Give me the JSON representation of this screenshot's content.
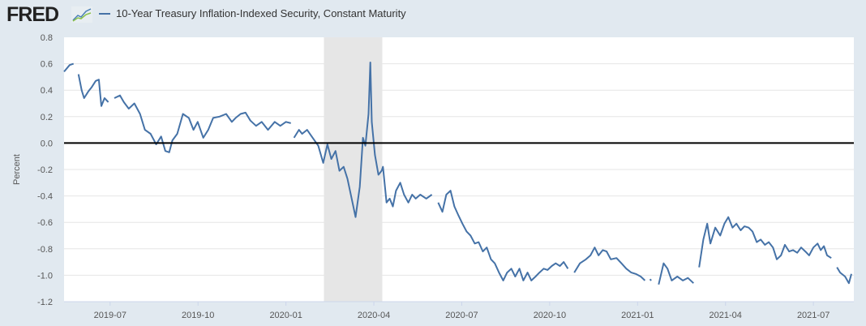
{
  "header": {
    "logo_text": "FRED"
  },
  "chart_data": {
    "type": "line",
    "title": "",
    "legend": [
      "10-Year Treasury Inflation-Indexed Security, Constant Maturity"
    ],
    "legend_placement": "top-left",
    "xlabel": "",
    "ylabel": "Percent",
    "ylim": [
      -1.2,
      0.8
    ],
    "xlim": [
      2019.369,
      2021.615
    ],
    "yticks": [
      "0.8",
      "0.6",
      "0.4",
      "0.2",
      "0.0",
      "-0.2",
      "-0.4",
      "-0.6",
      "-0.8",
      "-1.0",
      "-1.2"
    ],
    "ytick_values": [
      0.8,
      0.6,
      0.4,
      0.2,
      0,
      -0.2,
      -0.4,
      -0.6,
      -0.8,
      -1.0,
      -1.2
    ],
    "xticks": [
      "2019-07",
      "2019-10",
      "2020-01",
      "2020-04",
      "2020-07",
      "2020-10",
      "2021-01",
      "2021-04",
      "2021-07"
    ],
    "xtick_values": [
      2019.5,
      2019.75,
      2020.0,
      2020.25,
      2020.5,
      2020.75,
      2021.0,
      2021.25,
      2021.5
    ],
    "grid": true,
    "recession_shading": [
      2020.108,
      2020.274
    ],
    "line_color": "#4572a7",
    "series": [
      {
        "name": "10-Year Treasury Inflation-Indexed Security, Constant Maturity",
        "segments": [
          [
            [
              2019.369,
              0.54
            ],
            [
              2019.385,
              0.59
            ],
            [
              2019.396,
              0.6
            ]
          ],
          [
            [
              2019.41,
              0.52
            ],
            [
              2019.419,
              0.4
            ],
            [
              2019.426,
              0.34
            ],
            [
              2019.438,
              0.39
            ],
            [
              2019.447,
              0.42
            ],
            [
              2019.459,
              0.47
            ],
            [
              2019.468,
              0.48
            ],
            [
              2019.475,
              0.28
            ],
            [
              2019.484,
              0.34
            ],
            [
              2019.495,
              0.31
            ]
          ],
          [
            [
              2019.512,
              0.34
            ],
            [
              2019.528,
              0.36
            ],
            [
              2019.539,
              0.31
            ],
            [
              2019.553,
              0.26
            ],
            [
              2019.569,
              0.3
            ],
            [
              2019.585,
              0.22
            ],
            [
              2019.599,
              0.1
            ],
            [
              2019.615,
              0.07
            ],
            [
              2019.631,
              -0.01
            ],
            [
              2019.645,
              0.05
            ],
            [
              2019.657,
              -0.06
            ],
            [
              2019.668,
              -0.07
            ],
            [
              2019.677,
              0.02
            ],
            [
              2019.691,
              0.07
            ],
            [
              2019.707,
              0.22
            ],
            [
              2019.724,
              0.19
            ],
            [
              2019.737,
              0.1
            ],
            [
              2019.749,
              0.16
            ],
            [
              2019.765,
              0.04
            ],
            [
              2019.779,
              0.1
            ],
            [
              2019.793,
              0.19
            ],
            [
              2019.811,
              0.2
            ],
            [
              2019.83,
              0.22
            ],
            [
              2019.846,
              0.16
            ],
            [
              2019.857,
              0.19
            ],
            [
              2019.871,
              0.22
            ],
            [
              2019.885,
              0.23
            ],
            [
              2019.899,
              0.17
            ],
            [
              2019.915,
              0.13
            ],
            [
              2019.931,
              0.16
            ],
            [
              2019.949,
              0.1
            ],
            [
              2019.968,
              0.16
            ],
            [
              2019.984,
              0.13
            ],
            [
              2020.0,
              0.16
            ],
            [
              2020.014,
              0.15
            ]
          ],
          [
            [
              2020.023,
              0.04
            ],
            [
              2020.037,
              0.1
            ],
            [
              2020.046,
              0.07
            ],
            [
              2020.06,
              0.1
            ],
            [
              2020.076,
              0.04
            ],
            [
              2020.092,
              -0.02
            ],
            [
              2020.106,
              -0.15
            ],
            [
              2020.118,
              -0.01
            ],
            [
              2020.129,
              -0.12
            ],
            [
              2020.141,
              -0.06
            ],
            [
              2020.152,
              -0.21
            ],
            [
              2020.164,
              -0.18
            ],
            [
              2020.175,
              -0.27
            ],
            [
              2020.187,
              -0.42
            ],
            [
              2020.198,
              -0.56
            ],
            [
              2020.21,
              -0.33
            ],
            [
              2020.219,
              0.04
            ],
            [
              2020.226,
              -0.02
            ],
            [
              2020.235,
              0.22
            ],
            [
              2020.24,
              0.61
            ],
            [
              2020.244,
              0.16
            ],
            [
              2020.253,
              -0.09
            ],
            [
              2020.263,
              -0.24
            ],
            [
              2020.272,
              -0.21
            ],
            [
              2020.276,
              -0.18
            ],
            [
              2020.286,
              -0.45
            ],
            [
              2020.295,
              -0.42
            ],
            [
              2020.304,
              -0.48
            ],
            [
              2020.313,
              -0.36
            ],
            [
              2020.325,
              -0.3
            ],
            [
              2020.336,
              -0.39
            ],
            [
              2020.348,
              -0.45
            ],
            [
              2020.359,
              -0.39
            ],
            [
              2020.369,
              -0.42
            ],
            [
              2020.382,
              -0.39
            ],
            [
              2020.399,
              -0.42
            ],
            [
              2020.415,
              -0.39
            ]
          ],
          [
            [
              2020.433,
              -0.45
            ],
            [
              2020.445,
              -0.52
            ],
            [
              2020.456,
              -0.39
            ],
            [
              2020.468,
              -0.36
            ],
            [
              2020.479,
              -0.48
            ],
            [
              2020.491,
              -0.55
            ],
            [
              2020.502,
              -0.61
            ],
            [
              2020.514,
              -0.67
            ],
            [
              2020.525,
              -0.7
            ],
            [
              2020.537,
              -0.76
            ],
            [
              2020.548,
              -0.75
            ],
            [
              2020.56,
              -0.82
            ],
            [
              2020.571,
              -0.79
            ],
            [
              2020.583,
              -0.88
            ],
            [
              2020.594,
              -0.91
            ],
            [
              2020.606,
              -0.98
            ],
            [
              2020.618,
              -1.04
            ],
            [
              2020.629,
              -0.98
            ],
            [
              2020.641,
              -0.95
            ],
            [
              2020.652,
              -1.01
            ],
            [
              2020.664,
              -0.95
            ],
            [
              2020.675,
              -1.04
            ],
            [
              2020.687,
              -0.98
            ],
            [
              2020.698,
              -1.04
            ],
            [
              2020.71,
              -1.01
            ],
            [
              2020.721,
              -0.98
            ],
            [
              2020.733,
              -0.95
            ],
            [
              2020.744,
              -0.96
            ],
            [
              2020.756,
              -0.93
            ],
            [
              2020.767,
              -0.91
            ],
            [
              2020.779,
              -0.93
            ],
            [
              2020.79,
              -0.9
            ],
            [
              2020.802,
              -0.95
            ]
          ],
          [
            [
              2020.82,
              -0.98
            ],
            [
              2020.836,
              -0.91
            ],
            [
              2020.853,
              -0.88
            ],
            [
              2020.866,
              -0.85
            ],
            [
              2020.878,
              -0.79
            ],
            [
              2020.889,
              -0.85
            ],
            [
              2020.901,
              -0.81
            ],
            [
              2020.912,
              -0.82
            ],
            [
              2020.924,
              -0.88
            ],
            [
              2020.94,
              -0.87
            ],
            [
              2020.954,
              -0.91
            ],
            [
              2020.968,
              -0.95
            ],
            [
              2020.982,
              -0.98
            ],
            [
              2020.995,
              -0.99
            ],
            [
              2021.009,
              -1.01
            ],
            [
              2021.021,
              -1.04
            ]
          ],
          [
            [
              2021.035,
              -1.03
            ],
            [
              2021.039,
              -1.04
            ]
          ],
          [
            [
              2021.06,
              -1.07
            ],
            [
              2021.074,
              -0.91
            ],
            [
              2021.085,
              -0.95
            ],
            [
              2021.097,
              -1.04
            ],
            [
              2021.113,
              -1.01
            ],
            [
              2021.129,
              -1.04
            ],
            [
              2021.143,
              -1.02
            ],
            [
              2021.159,
              -1.06
            ]
          ],
          [
            [
              2021.175,
              -0.94
            ],
            [
              2021.187,
              -0.73
            ],
            [
              2021.198,
              -0.61
            ],
            [
              2021.207,
              -0.76
            ],
            [
              2021.221,
              -0.64
            ],
            [
              2021.235,
              -0.7
            ],
            [
              2021.247,
              -0.61
            ],
            [
              2021.258,
              -0.56
            ],
            [
              2021.27,
              -0.64
            ],
            [
              2021.281,
              -0.61
            ],
            [
              2021.293,
              -0.66
            ],
            [
              2021.304,
              -0.63
            ],
            [
              2021.316,
              -0.64
            ],
            [
              2021.327,
              -0.67
            ],
            [
              2021.339,
              -0.75
            ],
            [
              2021.35,
              -0.73
            ],
            [
              2021.362,
              -0.77
            ],
            [
              2021.373,
              -0.75
            ],
            [
              2021.385,
              -0.79
            ],
            [
              2021.396,
              -0.88
            ],
            [
              2021.408,
              -0.85
            ],
            [
              2021.419,
              -0.77
            ],
            [
              2021.431,
              -0.82
            ],
            [
              2021.442,
              -0.81
            ],
            [
              2021.454,
              -0.83
            ],
            [
              2021.465,
              -0.79
            ],
            [
              2021.477,
              -0.82
            ],
            [
              2021.488,
              -0.85
            ],
            [
              2021.5,
              -0.79
            ],
            [
              2021.512,
              -0.76
            ],
            [
              2021.521,
              -0.81
            ],
            [
              2021.53,
              -0.78
            ],
            [
              2021.539,
              -0.85
            ],
            [
              2021.551,
              -0.87
            ]
          ],
          [
            [
              2021.567,
              -0.94
            ],
            [
              2021.576,
              -0.98
            ],
            [
              2021.59,
              -1.01
            ],
            [
              2021.601,
              -1.06
            ],
            [
              2021.608,
              -0.99
            ]
          ]
        ]
      }
    ]
  }
}
